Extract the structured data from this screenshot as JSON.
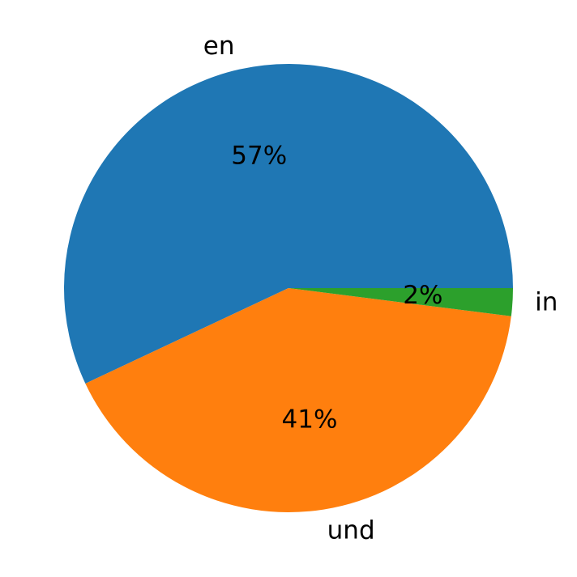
{
  "chart_data": {
    "type": "pie",
    "categories": [
      "en",
      "und",
      "in"
    ],
    "values": [
      57,
      41,
      2
    ],
    "value_labels": [
      "57%",
      "41%",
      "2%"
    ],
    "colors": [
      "#1f77b4",
      "#ff7f0e",
      "#2ca02c"
    ]
  }
}
